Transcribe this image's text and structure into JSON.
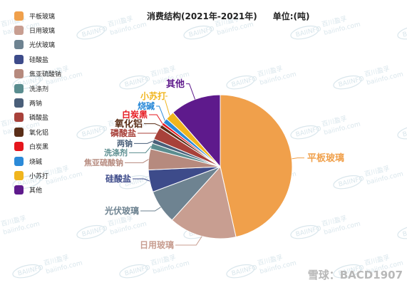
{
  "chart_data": {
    "type": "pie",
    "title": "消费结构(2021年-2021年)",
    "unit_label": "单位:(吨)",
    "legend_position": "left",
    "slices": [
      {
        "label": "平板玻璃",
        "value": 46.5,
        "color": "#f0a04b"
      },
      {
        "label": "日用玻璃",
        "value": 15.2,
        "color": "#c89e91"
      },
      {
        "label": "光伏玻璃",
        "value": 7.6,
        "color": "#6e8391"
      },
      {
        "label": "硅酸盐",
        "value": 5.0,
        "color": "#3d4b8a"
      },
      {
        "label": "焦亚硫酸钠",
        "value": 4.7,
        "color": "#b68a7e"
      },
      {
        "label": "洗涤剂",
        "value": 1.3,
        "color": "#5a8d8f"
      },
      {
        "label": "两钠",
        "value": 1.0,
        "color": "#4a5f79"
      },
      {
        "label": "磷酸盐",
        "value": 2.8,
        "color": "#a8413a"
      },
      {
        "label": "氧化铝",
        "value": 0.8,
        "color": "#5a2e18"
      },
      {
        "label": "白炭黑",
        "value": 0.6,
        "color": "#e5161d"
      },
      {
        "label": "烧碱",
        "value": 1.1,
        "color": "#2b8ad8"
      },
      {
        "label": "小苏打",
        "value": 2.0,
        "color": "#f0b51e"
      },
      {
        "label": "其他",
        "value": 11.4,
        "color": "#5e1a8c"
      }
    ]
  },
  "watermark": {
    "text": "雪球：BACD1907",
    "repeat_text": "百川盈孚",
    "repeat_url": "baiinfo.com",
    "badge_text": "BAIINFO"
  }
}
